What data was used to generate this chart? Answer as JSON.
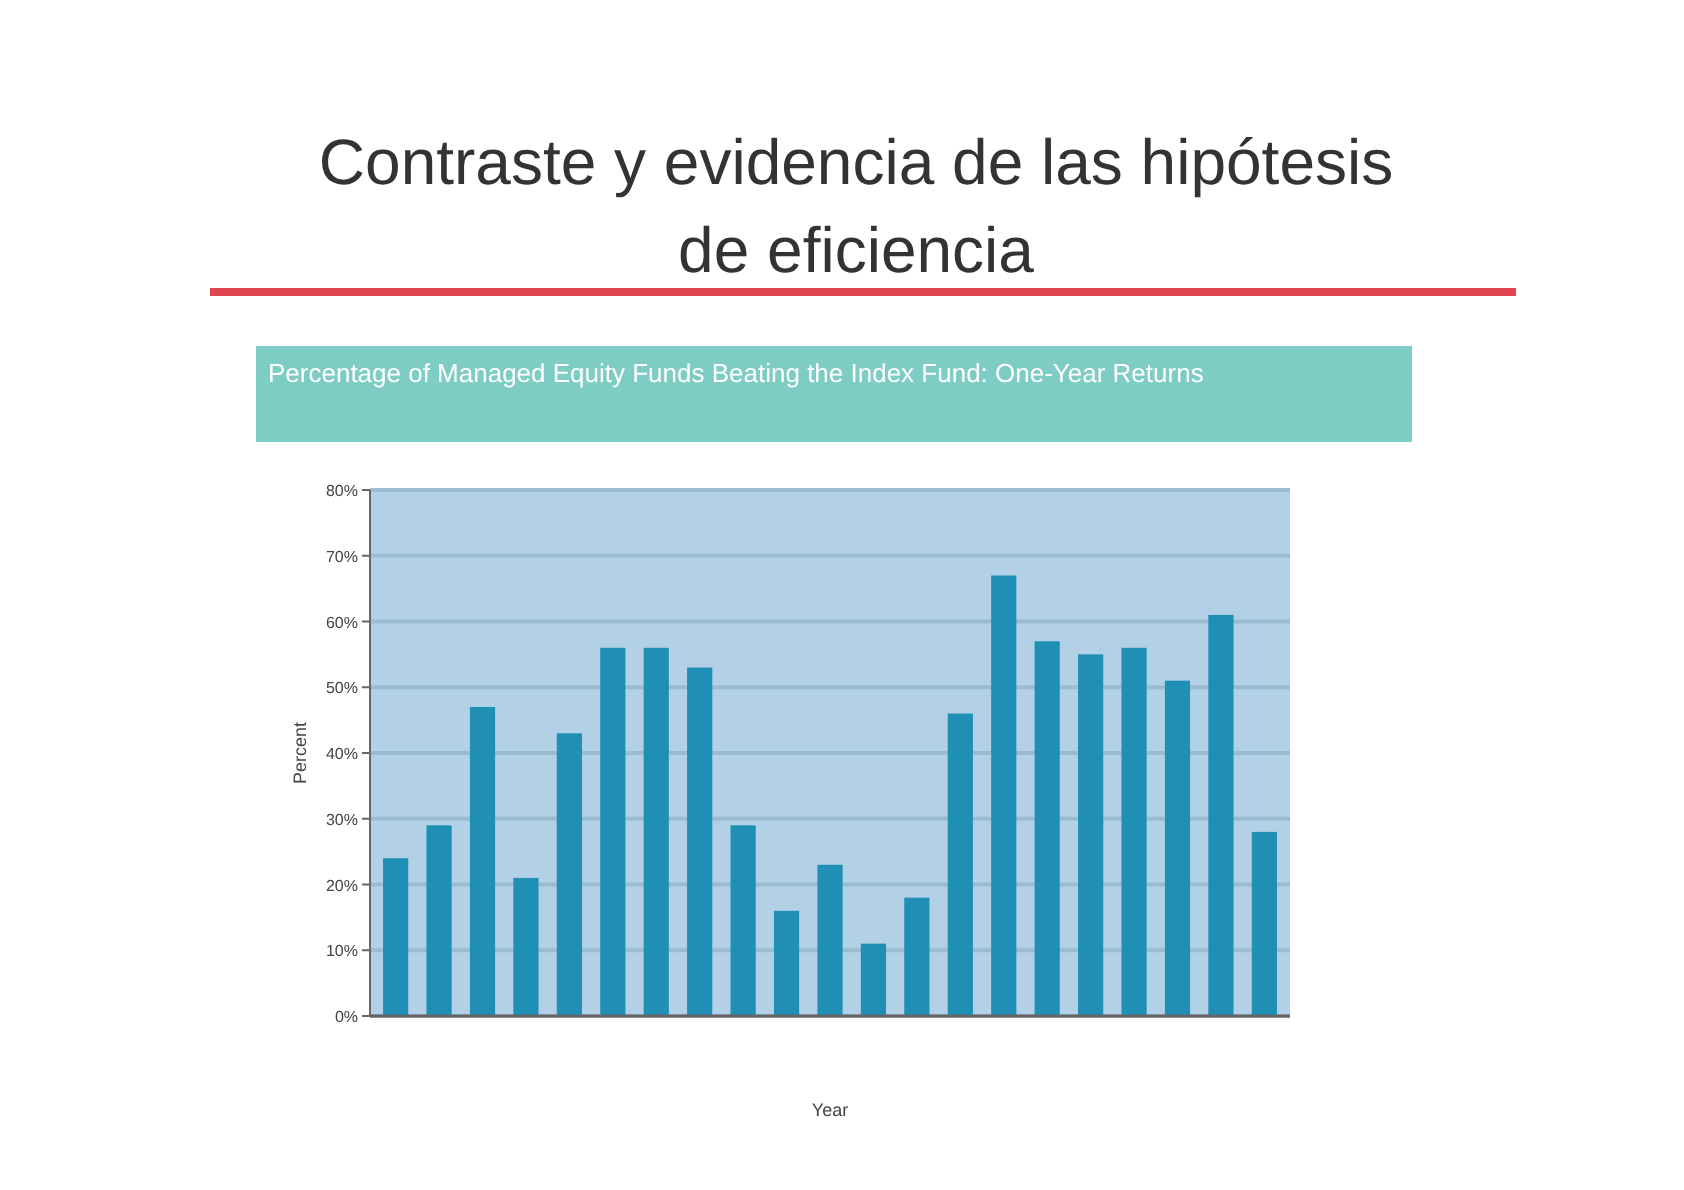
{
  "chart_data": {
    "type": "bar",
    "title": "Contraste y evidencia de las hipótesis de eficiencia",
    "subtitle": "Percentage of Managed Equity Funds Beating the Index Fund: One-Year Returns",
    "xlabel": "Year",
    "ylabel": "Percent",
    "categories": [
      null,
      null,
      null,
      null,
      null,
      null,
      null,
      null,
      null,
      null,
      null,
      null,
      null,
      null,
      null,
      null,
      null,
      null,
      null,
      null,
      null
    ],
    "values": [
      24,
      29,
      47,
      21,
      43,
      56,
      56,
      53,
      29,
      16,
      23,
      11,
      18,
      46,
      67,
      57,
      55,
      56,
      51,
      61,
      28
    ],
    "color": "#1f8fb5",
    "ylim": [
      0,
      80
    ],
    "yticks": [
      {
        "value": 0,
        "label": "0%"
      },
      {
        "value": 10,
        "label": "10%"
      },
      {
        "value": 20,
        "label": "20%"
      },
      {
        "value": 30,
        "label": "30%"
      },
      {
        "value": 40,
        "label": "40%"
      },
      {
        "value": 50,
        "label": "50%"
      },
      {
        "value": 60,
        "label": "60%"
      },
      {
        "value": 70,
        "label": "70%"
      },
      {
        "value": 80,
        "label": "80%"
      }
    ],
    "grid": "y"
  }
}
